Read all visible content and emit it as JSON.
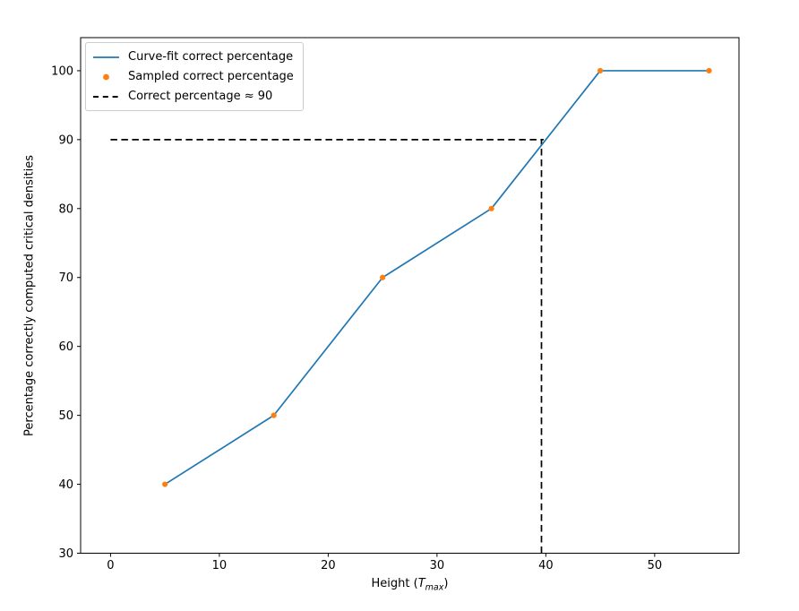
{
  "figure": {
    "background": "#ffffff"
  },
  "chart_data": {
    "type": "line",
    "title": "",
    "xlabel": {
      "prefix": "Height (",
      "var": "T",
      "sub": "max",
      "suffix": ")"
    },
    "ylabel": "Percentage correctly computed critical densities",
    "xlim": [
      -2.75,
      57.75
    ],
    "ylim": [
      30,
      104.8
    ],
    "xticks": [
      0,
      10,
      20,
      30,
      40,
      50
    ],
    "yticks": [
      30,
      40,
      50,
      60,
      70,
      80,
      90,
      100
    ],
    "grid": false,
    "series": [
      {
        "name": "Curve-fit correct percentage",
        "type": "line",
        "color": "#1f77b4",
        "x": [
          5,
          15,
          25,
          35,
          45,
          55
        ],
        "y": [
          40,
          50,
          70,
          80,
          100,
          100
        ]
      },
      {
        "name": "Sampled correct percentage",
        "type": "scatter",
        "color": "#ff7f0e",
        "x": [
          5,
          15,
          25,
          35,
          45,
          55
        ],
        "y": [
          40,
          50,
          70,
          80,
          100,
          100
        ]
      }
    ],
    "annotations": {
      "label": "Correct percentage ≈ 90",
      "color": "#000000",
      "hline": {
        "y": 90,
        "x_start": 0,
        "x_end": 39.8
      },
      "vline": {
        "x": 39.6,
        "y_start": 30,
        "y_end": 90
      }
    },
    "legend": {
      "position": "upper left",
      "items": [
        {
          "label": "Curve-fit correct percentage",
          "type": "line",
          "color": "#1f77b4"
        },
        {
          "label": "Sampled correct percentage",
          "type": "marker",
          "color": "#ff7f0e"
        },
        {
          "label": "Correct percentage ≈ 90",
          "type": "dashed",
          "color": "#000000"
        }
      ]
    }
  }
}
